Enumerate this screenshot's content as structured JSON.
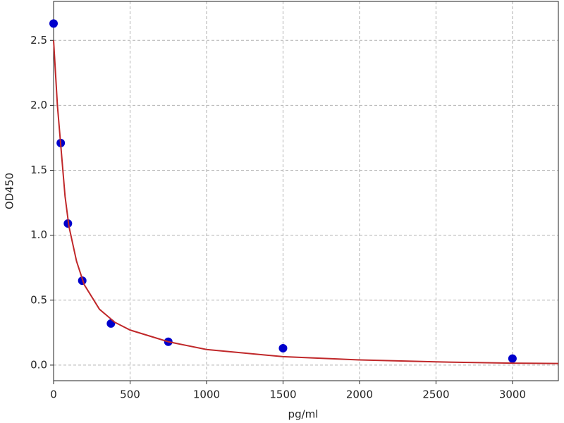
{
  "chart_data": {
    "type": "scatter",
    "x_label": "pg/ml",
    "y_label": "OD450",
    "xlim": [
      0,
      3300
    ],
    "ylim": [
      -0.12,
      2.8
    ],
    "xticks": [
      0,
      500,
      1000,
      1500,
      2000,
      2500,
      3000
    ],
    "yticks": [
      {
        "value": 0,
        "label": "0.0"
      },
      0.5,
      {
        "value": 1,
        "label": "1.0"
      },
      1.5,
      {
        "value": 2,
        "label": "2.0"
      },
      2.5
    ],
    "grid": true,
    "series": [
      {
        "type": "scatter",
        "color": "#0000cc",
        "x": [
          0,
          46.875,
          93.75,
          187.5,
          375,
          750,
          1500,
          3000
        ],
        "values": [
          2.63,
          1.71,
          1.09,
          0.65,
          0.32,
          0.18,
          0.13,
          0.05
        ]
      },
      {
        "type": "line",
        "color": "#c0282a",
        "x": [
          0,
          25,
          50,
          75,
          100,
          150,
          200,
          300,
          400,
          500,
          750,
          1000,
          1500,
          2000,
          2500,
          3000,
          3300
        ],
        "values": [
          2.5,
          2.0,
          1.65,
          1.3,
          1.07,
          0.8,
          0.62,
          0.43,
          0.33,
          0.27,
          0.18,
          0.12,
          0.065,
          0.04,
          0.025,
          0.015,
          0.012
        ]
      }
    ]
  }
}
